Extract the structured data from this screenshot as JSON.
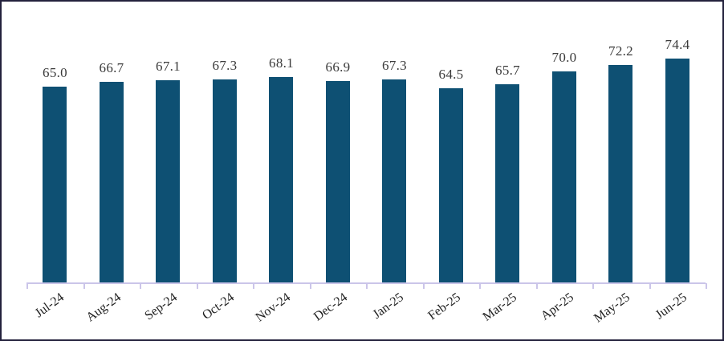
{
  "chart_data": {
    "type": "bar",
    "title": "",
    "xlabel": "",
    "ylabel": "",
    "categories": [
      "Jul-24",
      "Aug-24",
      "Sep-24",
      "Oct-24",
      "Nov-24",
      "Dec-24",
      "Jan-25",
      "Feb-25",
      "Mar-25",
      "Apr-25",
      "May-25",
      "Jun-25"
    ],
    "values": [
      65.0,
      66.7,
      67.1,
      67.3,
      68.1,
      66.9,
      67.3,
      64.5,
      65.7,
      70.0,
      72.2,
      74.4
    ],
    "data_labels": [
      "65.0",
      "66.7",
      "67.1",
      "67.3",
      "68.1",
      "66.9",
      "67.3",
      "64.5",
      "65.7",
      "70.0",
      "72.2",
      "74.4"
    ],
    "ylim": [
      0,
      80
    ],
    "grid": false,
    "legend_position": "none",
    "y_axis_visible": false,
    "data_labels_shown": true,
    "x_label_rotation_deg": -36
  },
  "colors": {
    "bar": "#0E5073",
    "axis_line": "#CBC5E9",
    "data_label": "#3A3A3A",
    "tick_label": "#1F1F1F",
    "frame_border": "#23213C",
    "background": "#FFFFFF"
  }
}
